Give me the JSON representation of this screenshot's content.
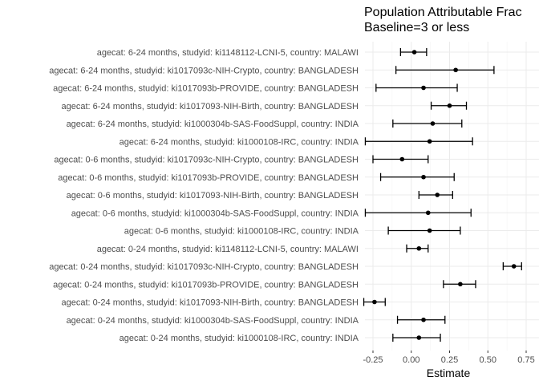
{
  "chart_data": {
    "type": "scatter",
    "title_lines": [
      "Population Attributable Frac",
      "Baseline=3 or less"
    ],
    "xlabel": "Estimate",
    "ylabel": "",
    "xlim": [
      -0.33,
      0.75
    ],
    "xticks": [
      -0.25,
      0.0,
      0.25,
      0.5,
      0.75
    ],
    "xtick_labels": [
      "-0.25",
      "0.00",
      "0.25",
      "0.50",
      "0.75"
    ],
    "grid": true,
    "categories": [
      "agecat: 6-24 months, studyid: ki1148112-LCNI-5, country: MALAWI",
      "agecat: 6-24 months, studyid: ki1017093c-NIH-Crypto, country: BANGLADESH",
      "agecat: 6-24 months, studyid: ki1017093b-PROVIDE, country: BANGLADESH",
      "agecat: 6-24 months, studyid: ki1017093-NIH-Birth, country: BANGLADESH",
      "agecat: 6-24 months, studyid: ki1000304b-SAS-FoodSuppl, country: INDIA",
      "agecat: 6-24 months, studyid: ki1000108-IRC, country: INDIA",
      "agecat: 0-6 months, studyid: ki1017093c-NIH-Crypto, country: BANGLADESH",
      "agecat: 0-6 months, studyid: ki1017093b-PROVIDE, country: BANGLADESH",
      "agecat: 0-6 months, studyid: ki1017093-NIH-Birth, country: BANGLADESH",
      "agecat: 0-6 months, studyid: ki1000304b-SAS-FoodSuppl, country: INDIA",
      "agecat: 0-6 months, studyid: ki1000108-IRC, country: INDIA",
      "agecat: 0-24 months, studyid: ki1148112-LCNI-5, country: MALAWI",
      "agecat: 0-24 months, studyid: ki1017093c-NIH-Crypto, country: BANGLADESH",
      "agecat: 0-24 months, studyid: ki1017093b-PROVIDE, country: BANGLADESH",
      "agecat: 0-24 months, studyid: ki1017093-NIH-Birth, country: BANGLADESH",
      "agecat: 0-24 months, studyid: ki1000304b-SAS-FoodSuppl, country: INDIA",
      "agecat: 0-24 months, studyid: ki1000108-IRC, country: INDIA"
    ],
    "estimates": [
      0.02,
      0.29,
      0.08,
      0.25,
      0.14,
      0.12,
      -0.06,
      0.08,
      0.17,
      0.11,
      0.12,
      0.05,
      0.67,
      0.32,
      -0.24,
      0.08,
      0.05
    ],
    "lower": [
      -0.07,
      -0.1,
      -0.23,
      0.13,
      -0.12,
      -0.3,
      -0.25,
      -0.2,
      0.05,
      -0.3,
      -0.15,
      -0.03,
      0.6,
      0.21,
      -0.31,
      -0.09,
      -0.12
    ],
    "upper": [
      0.1,
      0.54,
      0.3,
      0.36,
      0.33,
      0.4,
      0.11,
      0.28,
      0.27,
      0.39,
      0.32,
      0.11,
      0.72,
      0.42,
      -0.17,
      0.22,
      0.19
    ]
  }
}
